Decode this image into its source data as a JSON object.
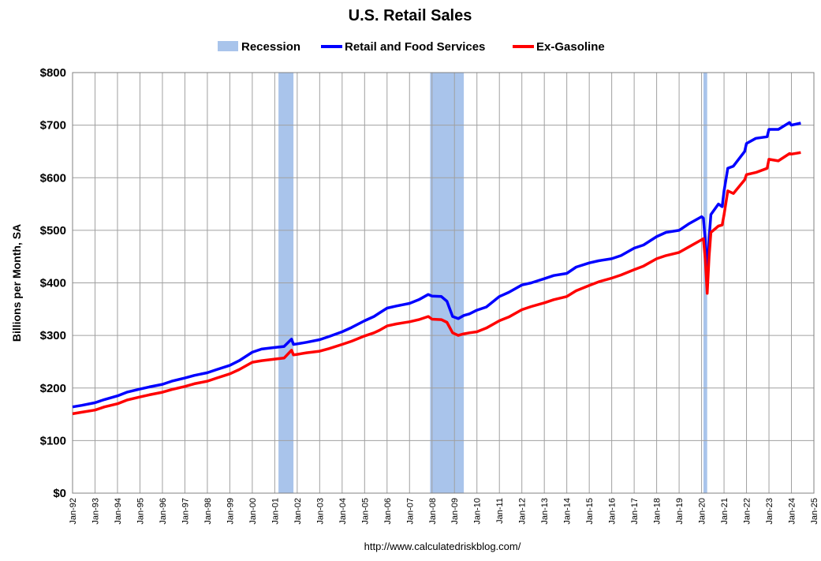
{
  "chart_data": {
    "type": "line",
    "title": "U.S. Retail Sales",
    "ylabel": "Billions per Month, SA",
    "xlabel": "",
    "source": "http://www.calculatedriskblog.com/",
    "ylim": [
      0,
      800
    ],
    "xlim": [
      1992.0,
      2025.0
    ],
    "y_ticks": [
      0,
      100,
      200,
      300,
      400,
      500,
      600,
      700,
      800
    ],
    "y_tick_labels": [
      "$0",
      "$100",
      "$200",
      "$300",
      "$400",
      "$500",
      "$600",
      "$700",
      "$800"
    ],
    "x_tick_labels": [
      "Jan-92",
      "Jan-93",
      "Jan-94",
      "Jan-95",
      "Jan-96",
      "Jan-97",
      "Jan-98",
      "Jan-99",
      "Jan-00",
      "Jan-01",
      "Jan-02",
      "Jan-03",
      "Jan-04",
      "Jan-05",
      "Jan-06",
      "Jan-07",
      "Jan-08",
      "Jan-09",
      "Jan-10",
      "Jan-11",
      "Jan-12",
      "Jan-13",
      "Jan-14",
      "Jan-15",
      "Jan-16",
      "Jan-17",
      "Jan-18",
      "Jan-19",
      "Jan-20",
      "Jan-21",
      "Jan-22",
      "Jan-23",
      "Jan-24",
      "Jan-25"
    ],
    "grid": true,
    "legend": {
      "position": "top",
      "entries": [
        {
          "name": "Recession",
          "color": "#a9c4eb",
          "kind": "band"
        },
        {
          "name": "Retail and Food Services",
          "color": "#0000ff",
          "kind": "line"
        },
        {
          "name": "Ex-Gasoline",
          "color": "#ff0000",
          "kind": "line"
        }
      ]
    },
    "recessions": [
      {
        "start": "2001-03",
        "end": "2001-11"
      },
      {
        "start": "2007-12",
        "end": "2009-06"
      },
      {
        "start": "2020-02",
        "end": "2020-04"
      }
    ],
    "series": [
      {
        "name": "Retail and Food Services",
        "color": "#0000ff",
        "points": [
          [
            "1992-01",
            164
          ],
          [
            "1992-06",
            167
          ],
          [
            "1993-01",
            172
          ],
          [
            "1993-06",
            178
          ],
          [
            "1994-01",
            185
          ],
          [
            "1994-06",
            192
          ],
          [
            "1995-01",
            198
          ],
          [
            "1995-06",
            202
          ],
          [
            "1996-01",
            207
          ],
          [
            "1996-06",
            213
          ],
          [
            "1997-01",
            219
          ],
          [
            "1997-06",
            224
          ],
          [
            "1998-01",
            229
          ],
          [
            "1998-06",
            235
          ],
          [
            "1999-01",
            243
          ],
          [
            "1999-06",
            252
          ],
          [
            "2000-01",
            268
          ],
          [
            "2000-06",
            274
          ],
          [
            "2001-01",
            277
          ],
          [
            "2001-06",
            279
          ],
          [
            "2001-10",
            293
          ],
          [
            "2001-11",
            283
          ],
          [
            "2002-01",
            284
          ],
          [
            "2002-06",
            287
          ],
          [
            "2003-01",
            292
          ],
          [
            "2003-06",
            298
          ],
          [
            "2004-01",
            307
          ],
          [
            "2004-06",
            315
          ],
          [
            "2005-01",
            328
          ],
          [
            "2005-06",
            336
          ],
          [
            "2005-09",
            343
          ],
          [
            "2006-01",
            352
          ],
          [
            "2006-06",
            356
          ],
          [
            "2007-01",
            361
          ],
          [
            "2007-06",
            368
          ],
          [
            "2007-11",
            378
          ],
          [
            "2008-01",
            375
          ],
          [
            "2008-06",
            374
          ],
          [
            "2008-09",
            365
          ],
          [
            "2008-12",
            336
          ],
          [
            "2009-03",
            332
          ],
          [
            "2009-06",
            338
          ],
          [
            "2009-09",
            341
          ],
          [
            "2010-01",
            348
          ],
          [
            "2010-06",
            354
          ],
          [
            "2011-01",
            374
          ],
          [
            "2011-06",
            382
          ],
          [
            "2012-01",
            396
          ],
          [
            "2012-06",
            400
          ],
          [
            "2013-01",
            408
          ],
          [
            "2013-06",
            414
          ],
          [
            "2014-01",
            418
          ],
          [
            "2014-06",
            430
          ],
          [
            "2015-01",
            438
          ],
          [
            "2015-06",
            442
          ],
          [
            "2016-01",
            446
          ],
          [
            "2016-06",
            452
          ],
          [
            "2017-01",
            466
          ],
          [
            "2017-06",
            472
          ],
          [
            "2018-01",
            488
          ],
          [
            "2018-06",
            496
          ],
          [
            "2019-01",
            500
          ],
          [
            "2019-06",
            512
          ],
          [
            "2020-01",
            526
          ],
          [
            "2020-02",
            523
          ],
          [
            "2020-03",
            480
          ],
          [
            "2020-04",
            412
          ],
          [
            "2020-05",
            485
          ],
          [
            "2020-06",
            530
          ],
          [
            "2020-10",
            550
          ],
          [
            "2020-12",
            545
          ],
          [
            "2021-01",
            575
          ],
          [
            "2021-03",
            618
          ],
          [
            "2021-06",
            622
          ],
          [
            "2021-12",
            650
          ],
          [
            "2022-01",
            665
          ],
          [
            "2022-06",
            675
          ],
          [
            "2022-12",
            678
          ],
          [
            "2023-01",
            692
          ],
          [
            "2023-06",
            692
          ],
          [
            "2023-12",
            705
          ],
          [
            "2024-01",
            700
          ],
          [
            "2024-06",
            704
          ]
        ]
      },
      {
        "name": "Ex-Gasoline",
        "color": "#ff0000",
        "points": [
          [
            "1992-01",
            151
          ],
          [
            "1992-06",
            154
          ],
          [
            "1993-01",
            158
          ],
          [
            "1993-06",
            164
          ],
          [
            "1994-01",
            170
          ],
          [
            "1994-06",
            177
          ],
          [
            "1995-01",
            183
          ],
          [
            "1995-06",
            187
          ],
          [
            "1996-01",
            192
          ],
          [
            "1996-06",
            197
          ],
          [
            "1997-01",
            203
          ],
          [
            "1997-06",
            208
          ],
          [
            "1998-01",
            213
          ],
          [
            "1998-06",
            219
          ],
          [
            "1999-01",
            227
          ],
          [
            "1999-06",
            235
          ],
          [
            "2000-01",
            249
          ],
          [
            "2000-06",
            252
          ],
          [
            "2001-01",
            255
          ],
          [
            "2001-06",
            257
          ],
          [
            "2001-10",
            272
          ],
          [
            "2001-11",
            263
          ],
          [
            "2002-01",
            264
          ],
          [
            "2002-06",
            267
          ],
          [
            "2003-01",
            270
          ],
          [
            "2003-06",
            275
          ],
          [
            "2004-01",
            283
          ],
          [
            "2004-06",
            289
          ],
          [
            "2005-01",
            299
          ],
          [
            "2005-06",
            305
          ],
          [
            "2005-09",
            310
          ],
          [
            "2006-01",
            318
          ],
          [
            "2006-06",
            322
          ],
          [
            "2007-01",
            326
          ],
          [
            "2007-06",
            330
          ],
          [
            "2007-11",
            336
          ],
          [
            "2008-01",
            331
          ],
          [
            "2008-06",
            330
          ],
          [
            "2008-09",
            325
          ],
          [
            "2008-12",
            305
          ],
          [
            "2009-03",
            300
          ],
          [
            "2009-06",
            303
          ],
          [
            "2009-09",
            305
          ],
          [
            "2010-01",
            307
          ],
          [
            "2010-06",
            314
          ],
          [
            "2011-01",
            328
          ],
          [
            "2011-06",
            335
          ],
          [
            "2012-01",
            349
          ],
          [
            "2012-06",
            355
          ],
          [
            "2013-01",
            362
          ],
          [
            "2013-06",
            368
          ],
          [
            "2014-01",
            374
          ],
          [
            "2014-06",
            385
          ],
          [
            "2015-01",
            395
          ],
          [
            "2015-06",
            402
          ],
          [
            "2016-01",
            409
          ],
          [
            "2016-06",
            415
          ],
          [
            "2017-01",
            425
          ],
          [
            "2017-06",
            432
          ],
          [
            "2018-01",
            446
          ],
          [
            "2018-06",
            452
          ],
          [
            "2019-01",
            458
          ],
          [
            "2019-06",
            468
          ],
          [
            "2020-01",
            482
          ],
          [
            "2020-02",
            484
          ],
          [
            "2020-03",
            445
          ],
          [
            "2020-04",
            380
          ],
          [
            "2020-05",
            450
          ],
          [
            "2020-06",
            496
          ],
          [
            "2020-10",
            508
          ],
          [
            "2020-12",
            510
          ],
          [
            "2021-01",
            530
          ],
          [
            "2021-03",
            575
          ],
          [
            "2021-06",
            570
          ],
          [
            "2021-12",
            596
          ],
          [
            "2022-01",
            606
          ],
          [
            "2022-06",
            610
          ],
          [
            "2022-12",
            618
          ],
          [
            "2023-01",
            635
          ],
          [
            "2023-06",
            632
          ],
          [
            "2023-12",
            646
          ],
          [
            "2024-01",
            645
          ],
          [
            "2024-06",
            648
          ]
        ]
      }
    ]
  }
}
